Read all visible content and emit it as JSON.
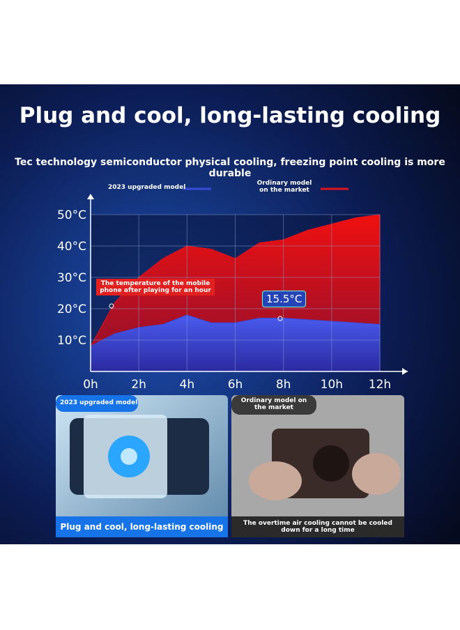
{
  "chart_data": {
    "type": "area",
    "title": "Plug and cool, long-lasting cooling",
    "subtitle": "Tec technology semiconductor physical cooling, freezing point cooling is more durable",
    "x": [
      0,
      0.5,
      1,
      2,
      3,
      4,
      5,
      6,
      7,
      8,
      9,
      10,
      11,
      12
    ],
    "series": [
      {
        "name": "Ordinary model on the market",
        "color": "#e0141c",
        "values": [
          8,
          15,
          22,
          30,
          36,
          40,
          39,
          36,
          41,
          42,
          45,
          47,
          49,
          50
        ]
      },
      {
        "name": "2023 upgraded model",
        "color": "#3a4bd8",
        "values": [
          8,
          10,
          12,
          14,
          15,
          18,
          15.5,
          15.5,
          17,
          17,
          16.5,
          16,
          15.5,
          15
        ]
      }
    ],
    "xlim": [
      0,
      12
    ],
    "xticks": [
      {
        "value": 0,
        "label": "0h"
      },
      {
        "value": 2,
        "label": "2h"
      },
      {
        "value": 4,
        "label": "4h"
      },
      {
        "value": 6,
        "label": "6h"
      },
      {
        "value": 8,
        "label": "8h"
      },
      {
        "value": 10,
        "label": "10h"
      },
      {
        "value": 12,
        "label": "12h"
      }
    ],
    "ylim": [
      0,
      50
    ],
    "yticks": [
      {
        "value": 10,
        "label": "10°C"
      },
      {
        "value": 20,
        "label": "20°C"
      },
      {
        "value": 30,
        "label": "30°C"
      },
      {
        "value": 40,
        "label": "40°C"
      },
      {
        "value": 50,
        "label": "50°C"
      }
    ],
    "grid": true,
    "annotations": [
      "The temperature of the mobile phone after playing for an hour",
      "15.5°C"
    ]
  },
  "panels": [
    {
      "tag": "2023 upgraded model",
      "caption": "Plug and cool, long-lasting cooling"
    },
    {
      "tag": "Ordinary model on the market",
      "caption": "The overtime air cooling cannot be cooled down for a long time"
    }
  ]
}
